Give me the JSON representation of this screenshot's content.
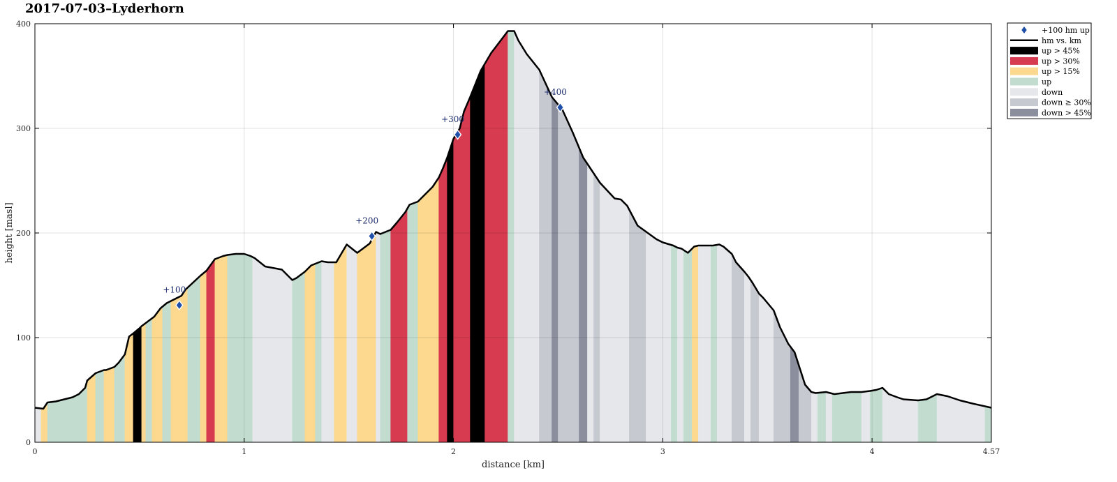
{
  "chart_data": {
    "type": "area",
    "title": "2017-07-03–Lyderhorn",
    "xlabel": "distance [km]",
    "ylabel": "height [masl]",
    "xlim": [
      0,
      4.57
    ],
    "ylim": [
      0,
      400
    ],
    "xticks": [
      0,
      1,
      2,
      3,
      4,
      4.57
    ],
    "xtick_labels": [
      "0",
      "1",
      "2",
      "3",
      "4",
      "4.57"
    ],
    "yticks": [
      0,
      100,
      200,
      300,
      400
    ],
    "ytick_labels": [
      "0",
      "100",
      "200",
      "300",
      "400"
    ],
    "grid": true,
    "legend_position": "outside-right",
    "category_colors": {
      "up45": "#000000",
      "up30": "#d63b4f",
      "up15": "#fcd98e",
      "up": "#c2ddd0",
      "down": "#e6e7eb",
      "down30": "#c7c9d1",
      "down45": "#8b8f9d"
    },
    "profile": {
      "x": [
        0,
        0.04,
        0.06,
        0.1,
        0.12,
        0.14,
        0.18,
        0.21,
        0.24,
        0.25,
        0.29,
        0.33,
        0.34,
        0.38,
        0.4,
        0.43,
        0.45,
        0.47,
        0.5,
        0.51,
        0.55,
        0.57,
        0.6,
        0.63,
        0.65,
        0.7,
        0.72,
        0.79,
        0.82,
        0.86,
        0.9,
        0.92,
        0.96,
        1.0,
        1.03,
        1.05,
        1.1,
        1.18,
        1.23,
        1.25,
        1.29,
        1.32,
        1.37,
        1.4,
        1.44,
        1.49,
        1.54,
        1.6,
        1.63,
        1.65,
        1.7,
        1.73,
        1.77,
        1.79,
        1.83,
        1.86,
        1.9,
        1.93,
        1.95,
        1.97,
        2.0,
        2.03,
        2.05,
        2.08,
        2.13,
        2.18,
        2.26,
        2.29,
        2.31,
        2.35,
        2.41,
        2.47,
        2.52,
        2.57,
        2.62,
        2.66,
        2.7,
        2.77,
        2.8,
        2.83,
        2.88,
        2.97,
        3.0,
        3.05,
        3.07,
        3.09,
        3.12,
        3.15,
        3.17,
        3.24,
        3.27,
        3.29,
        3.33,
        3.35,
        3.39,
        3.41,
        3.43,
        3.46,
        3.48,
        3.53,
        3.56,
        3.6,
        3.63,
        3.68,
        3.71,
        3.73,
        3.78,
        3.82,
        3.9,
        3.95,
        3.99,
        4.02,
        4.05,
        4.08,
        4.12,
        4.15,
        4.22,
        4.26,
        4.31,
        4.36,
        4.42,
        4.48,
        4.57
      ],
      "y": [
        33,
        32,
        38,
        39,
        40,
        41,
        43,
        46,
        52,
        59,
        66,
        69,
        69,
        72,
        76,
        84,
        101,
        104,
        109,
        111,
        117,
        120,
        128,
        133,
        135,
        140,
        146,
        159,
        164,
        175,
        178,
        179,
        180,
        180,
        178,
        176,
        168,
        165,
        155,
        157,
        163,
        169,
        173,
        172,
        172,
        189,
        181,
        190,
        201,
        199,
        203,
        210,
        220,
        227,
        230,
        236,
        244,
        253,
        262,
        272,
        290,
        300,
        316,
        330,
        355,
        372,
        393,
        393,
        384,
        371,
        356,
        330,
        318,
        296,
        272,
        260,
        248,
        233,
        232,
        226,
        207,
        194,
        191,
        188,
        186,
        185,
        181,
        187,
        188,
        188,
        189,
        187,
        180,
        172,
        163,
        158,
        152,
        142,
        138,
        126,
        110,
        94,
        86,
        55,
        48,
        47,
        48,
        46,
        48,
        48,
        49,
        50,
        52,
        46,
        43,
        41,
        40,
        41,
        46,
        44,
        40,
        37,
        33
      ]
    },
    "segments": [
      {
        "x0": 0.0,
        "x1": 0.03,
        "cat": "down"
      },
      {
        "x0": 0.03,
        "x1": 0.06,
        "cat": "up15"
      },
      {
        "x0": 0.06,
        "x1": 0.25,
        "cat": "up"
      },
      {
        "x0": 0.25,
        "x1": 0.29,
        "cat": "up15"
      },
      {
        "x0": 0.29,
        "x1": 0.33,
        "cat": "up"
      },
      {
        "x0": 0.33,
        "x1": 0.38,
        "cat": "up15"
      },
      {
        "x0": 0.38,
        "x1": 0.43,
        "cat": "up"
      },
      {
        "x0": 0.43,
        "x1": 0.47,
        "cat": "up15"
      },
      {
        "x0": 0.47,
        "x1": 0.51,
        "cat": "up45"
      },
      {
        "x0": 0.51,
        "x1": 0.53,
        "cat": "up15"
      },
      {
        "x0": 0.53,
        "x1": 0.56,
        "cat": "up"
      },
      {
        "x0": 0.56,
        "x1": 0.61,
        "cat": "up15"
      },
      {
        "x0": 0.61,
        "x1": 0.65,
        "cat": "up"
      },
      {
        "x0": 0.65,
        "x1": 0.73,
        "cat": "up15"
      },
      {
        "x0": 0.73,
        "x1": 0.79,
        "cat": "up"
      },
      {
        "x0": 0.79,
        "x1": 0.82,
        "cat": "up15"
      },
      {
        "x0": 0.82,
        "x1": 0.86,
        "cat": "up30"
      },
      {
        "x0": 0.86,
        "x1": 0.92,
        "cat": "up15"
      },
      {
        "x0": 0.92,
        "x1": 1.04,
        "cat": "up"
      },
      {
        "x0": 1.04,
        "x1": 1.23,
        "cat": "down"
      },
      {
        "x0": 1.23,
        "x1": 1.29,
        "cat": "up"
      },
      {
        "x0": 1.29,
        "x1": 1.34,
        "cat": "up15"
      },
      {
        "x0": 1.34,
        "x1": 1.37,
        "cat": "up"
      },
      {
        "x0": 1.37,
        "x1": 1.43,
        "cat": "down"
      },
      {
        "x0": 1.43,
        "x1": 1.49,
        "cat": "up15"
      },
      {
        "x0": 1.49,
        "x1": 1.54,
        "cat": "down"
      },
      {
        "x0": 1.54,
        "x1": 1.63,
        "cat": "up15"
      },
      {
        "x0": 1.63,
        "x1": 1.65,
        "cat": "down"
      },
      {
        "x0": 1.65,
        "x1": 1.7,
        "cat": "up"
      },
      {
        "x0": 1.7,
        "x1": 1.78,
        "cat": "up30"
      },
      {
        "x0": 1.78,
        "x1": 1.83,
        "cat": "up"
      },
      {
        "x0": 1.83,
        "x1": 1.93,
        "cat": "up15"
      },
      {
        "x0": 1.93,
        "x1": 1.97,
        "cat": "up30"
      },
      {
        "x0": 1.97,
        "x1": 2.0,
        "cat": "up45"
      },
      {
        "x0": 2.0,
        "x1": 2.08,
        "cat": "up30"
      },
      {
        "x0": 2.08,
        "x1": 2.15,
        "cat": "up45"
      },
      {
        "x0": 2.15,
        "x1": 2.26,
        "cat": "up30"
      },
      {
        "x0": 2.26,
        "x1": 2.29,
        "cat": "up"
      },
      {
        "x0": 2.29,
        "x1": 2.41,
        "cat": "down"
      },
      {
        "x0": 2.41,
        "x1": 2.47,
        "cat": "down30"
      },
      {
        "x0": 2.47,
        "x1": 2.5,
        "cat": "down45"
      },
      {
        "x0": 2.5,
        "x1": 2.6,
        "cat": "down30"
      },
      {
        "x0": 2.6,
        "x1": 2.64,
        "cat": "down45"
      },
      {
        "x0": 2.64,
        "x1": 2.67,
        "cat": "down"
      },
      {
        "x0": 2.67,
        "x1": 2.7,
        "cat": "down30"
      },
      {
        "x0": 2.7,
        "x1": 2.84,
        "cat": "down"
      },
      {
        "x0": 2.84,
        "x1": 2.92,
        "cat": "down30"
      },
      {
        "x0": 2.92,
        "x1": 3.04,
        "cat": "down"
      },
      {
        "x0": 3.04,
        "x1": 3.07,
        "cat": "up"
      },
      {
        "x0": 3.07,
        "x1": 3.1,
        "cat": "down"
      },
      {
        "x0": 3.1,
        "x1": 3.14,
        "cat": "up"
      },
      {
        "x0": 3.14,
        "x1": 3.17,
        "cat": "up15"
      },
      {
        "x0": 3.17,
        "x1": 3.23,
        "cat": "down"
      },
      {
        "x0": 3.23,
        "x1": 3.26,
        "cat": "up"
      },
      {
        "x0": 3.26,
        "x1": 3.33,
        "cat": "down"
      },
      {
        "x0": 3.33,
        "x1": 3.39,
        "cat": "down30"
      },
      {
        "x0": 3.39,
        "x1": 3.42,
        "cat": "down"
      },
      {
        "x0": 3.42,
        "x1": 3.46,
        "cat": "down30"
      },
      {
        "x0": 3.46,
        "x1": 3.53,
        "cat": "down"
      },
      {
        "x0": 3.53,
        "x1": 3.61,
        "cat": "down30"
      },
      {
        "x0": 3.61,
        "x1": 3.65,
        "cat": "down45"
      },
      {
        "x0": 3.65,
        "x1": 3.71,
        "cat": "down30"
      },
      {
        "x0": 3.71,
        "x1": 3.74,
        "cat": "down"
      },
      {
        "x0": 3.74,
        "x1": 3.78,
        "cat": "up"
      },
      {
        "x0": 3.78,
        "x1": 3.81,
        "cat": "down"
      },
      {
        "x0": 3.81,
        "x1": 3.95,
        "cat": "up"
      },
      {
        "x0": 3.95,
        "x1": 3.99,
        "cat": "down"
      },
      {
        "x0": 3.99,
        "x1": 4.05,
        "cat": "up"
      },
      {
        "x0": 4.05,
        "x1": 4.22,
        "cat": "down"
      },
      {
        "x0": 4.22,
        "x1": 4.31,
        "cat": "up"
      },
      {
        "x0": 4.31,
        "x1": 4.54,
        "cat": "down"
      },
      {
        "x0": 4.54,
        "x1": 4.57,
        "cat": "up"
      }
    ],
    "markers": [
      {
        "x": 0.69,
        "y": 131,
        "label": "+100"
      },
      {
        "x": 1.61,
        "y": 197,
        "label": "+200"
      },
      {
        "x": 2.02,
        "y": 294,
        "label": "+300"
      },
      {
        "x": 2.51,
        "y": 320,
        "label": "+400"
      }
    ],
    "legend": [
      {
        "kind": "marker",
        "label": "+100 hm up",
        "color": "#1f4fa8"
      },
      {
        "kind": "line",
        "label": "hm vs. km",
        "color": "#000000"
      },
      {
        "kind": "patch",
        "label": "up > 45%",
        "cat": "up45"
      },
      {
        "kind": "patch",
        "label": "up > 30%",
        "cat": "up30"
      },
      {
        "kind": "patch",
        "label": "up > 15%",
        "cat": "up15"
      },
      {
        "kind": "patch",
        "label": "up",
        "cat": "up"
      },
      {
        "kind": "patch",
        "label": "down",
        "cat": "down"
      },
      {
        "kind": "patch",
        "label": "down ≥ 30%",
        "cat": "down30"
      },
      {
        "kind": "patch",
        "label": "down > 45%",
        "cat": "down45"
      }
    ],
    "marker_color": "#1f4fa8",
    "marker_label_color": "#1a2a6c"
  }
}
